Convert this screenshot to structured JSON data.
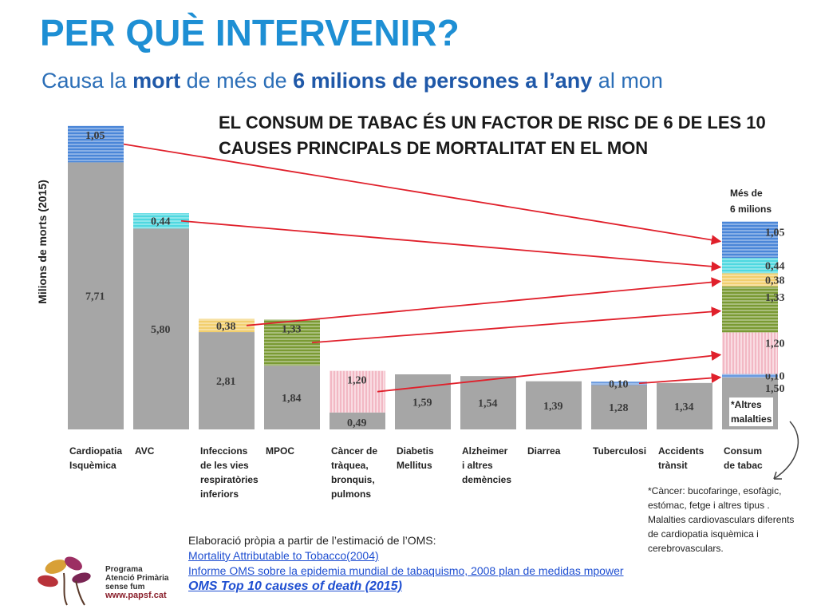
{
  "title": "PER QUÈ INTERVENIR?",
  "subtitle": {
    "p1": "Causa la ",
    "b1": "mort",
    "p2": " de més de ",
    "b2": "6 milions de persones a l’any",
    "p3": " al mon"
  },
  "headline": {
    "line1": "EL CONSUM DE TABAC ÉS UN FACTOR DE RISC DE 6 DE LES 10",
    "line2": "CAUSES PRINCIPALS DE MORTALITAT EN EL MON"
  },
  "chart_data": {
    "type": "bar",
    "stacked": true,
    "ylabel": "Milions de morts (2015)",
    "ylim": [
      0,
      9
    ],
    "categories": [
      [
        "Cardiopatia",
        "Isquèmica"
      ],
      [
        "AVC"
      ],
      [
        "Infeccions",
        "de les vies",
        "respiratòries",
        "inferiors"
      ],
      [
        "MPOC"
      ],
      [
        "Càncer de",
        "tràquea,",
        "bronquis,",
        "pulmons"
      ],
      [
        "Diabetis",
        "Mellitus"
      ],
      [
        "Alzheimer",
        "i altres",
        "demències"
      ],
      [
        "Diarrea"
      ],
      [
        "Tuberculosi"
      ],
      [
        "Accidents",
        "trànsit"
      ],
      [
        "Consum",
        "de tabac"
      ]
    ],
    "bars": [
      {
        "segments": [
          {
            "value": 7.71,
            "label": "7,71",
            "color": "#a6a6a6"
          },
          {
            "value": 1.05,
            "label": "1,05",
            "color": "#4a86d8"
          }
        ]
      },
      {
        "segments": [
          {
            "value": 5.8,
            "label": "5,80",
            "color": "#a6a6a6"
          },
          {
            "value": 0.44,
            "label": "0,44",
            "color": "#4fd8e0"
          }
        ]
      },
      {
        "segments": [
          {
            "value": 2.81,
            "label": "2,81",
            "color": "#a6a6a6"
          },
          {
            "value": 0.38,
            "label": "0,38",
            "color": "#f2cf6e"
          }
        ]
      },
      {
        "segments": [
          {
            "value": 1.84,
            "label": "1,84",
            "color": "#a6a6a6"
          },
          {
            "value": 1.33,
            "label": "1,33",
            "color": "#7a9a33"
          }
        ]
      },
      {
        "segments": [
          {
            "value": 0.49,
            "label": "0,49",
            "color": "#a6a6a6"
          },
          {
            "value": 1.2,
            "label": "1,20",
            "color": "#f2b8c4"
          }
        ]
      },
      {
        "segments": [
          {
            "value": 1.59,
            "label": "1,59",
            "color": "#a6a6a6"
          }
        ]
      },
      {
        "segments": [
          {
            "value": 1.54,
            "label": "1,54",
            "color": "#a6a6a6"
          }
        ]
      },
      {
        "segments": [
          {
            "value": 1.39,
            "label": "1,39",
            "color": "#a6a6a6"
          }
        ]
      },
      {
        "segments": [
          {
            "value": 1.28,
            "label": "1,28",
            "color": "#a6a6a6"
          },
          {
            "value": 0.1,
            "label": "0,10",
            "color": "#6a9be0"
          }
        ]
      },
      {
        "segments": [
          {
            "value": 1.34,
            "label": "1,34",
            "color": "#a6a6a6"
          }
        ]
      },
      {
        "segments": [
          {
            "value": 1.5,
            "label": "1,50",
            "color": "#a6a6a6"
          },
          {
            "value": 0.1,
            "label": "0,10",
            "color": "#6a9be0"
          },
          {
            "value": 1.2,
            "label": "1,20",
            "color": "#f2b8c4"
          },
          {
            "value": 1.33,
            "label": "1,33",
            "color": "#7a9a33"
          },
          {
            "value": 0.38,
            "label": "0,38",
            "color": "#f2cf6e"
          },
          {
            "value": 0.44,
            "label": "0,44",
            "color": "#4fd8e0"
          },
          {
            "value": 1.05,
            "label": "1,05",
            "color": "#4a86d8"
          }
        ]
      }
    ],
    "arrows": [
      {
        "from_bar": 0,
        "to_segment": 6
      },
      {
        "from_bar": 1,
        "to_segment": 5
      },
      {
        "from_bar": 2,
        "to_segment": 4
      },
      {
        "from_bar": 3,
        "to_segment": 3
      },
      {
        "from_bar": 4,
        "to_segment": 2
      },
      {
        "from_bar": 8,
        "to_segment": 1
      }
    ],
    "annotations": {
      "mes_line1": "Més de",
      "mes_line2": "6 milions",
      "altres_line1": "*Altres",
      "altres_line2": "malalties"
    }
  },
  "footnote": {
    "l1": "*Càncer: bucofaringe, esofàgic,",
    "l2": "estómac, fetge i altres tipus .",
    "l3": "Malalties cardiovasculars diferents",
    "l4": "de cardiopatia isquèmica i",
    "l5": "cerebrovasculars."
  },
  "source": {
    "intro": "Elaboració pròpia a partir de l’estimació de l’OMS:",
    "link1": "Mortality Attributable to Tobacco(2004)",
    "link2": "Informe OMS sobre la epidemia mundial de tabaquismo, 2008 plan de medidas mpower",
    "link3": "OMS Top 10 causes of death (2015)"
  },
  "logo": {
    "l1": "Programa",
    "l2": "Atenció Primària",
    "l3": "sense fum",
    "url": "www.papsf.cat"
  },
  "colors": {
    "title": "#1e8fd4",
    "subtitle": "#2b6eb7",
    "arrow": "#e0202b",
    "link": "#1f4fd1"
  }
}
